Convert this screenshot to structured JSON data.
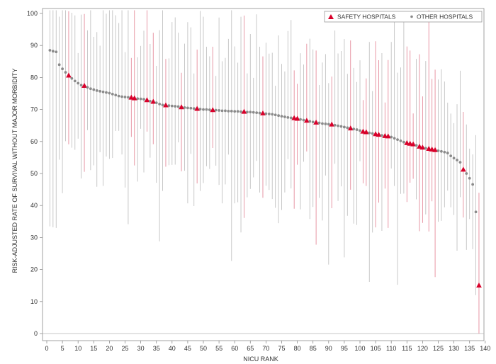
{
  "chart_data": {
    "type": "scatter",
    "title": "",
    "xlabel": "NICU RANK",
    "ylabel": "RISK-ADJUSTED RATE OF SURVIVAL WITHOUT MAJOR MORBIDITY",
    "xlim": [
      0,
      140
    ],
    "ylim": [
      0,
      100
    ],
    "x_ticks": [
      "0",
      "5",
      "10",
      "15",
      "20",
      "25",
      "30",
      "35",
      "40",
      "45",
      "50",
      "55",
      "60",
      "65",
      "70",
      "75",
      "80",
      "85",
      "90",
      "95",
      "100",
      "105",
      "110",
      "115",
      "120",
      "125",
      "130",
      "135",
      "140"
    ],
    "y_ticks": [
      "0",
      "10",
      "20",
      "30",
      "40",
      "50",
      "60",
      "70",
      "80",
      "90",
      "100"
    ],
    "grid": false,
    "legend_position": "top-right",
    "legend": [
      {
        "label": "SAFETY HOSPITALS",
        "marker": "triangle",
        "color": "#d8002a"
      },
      {
        "label": "OTHER HOSPITALS",
        "marker": "circle",
        "color": "#888888"
      }
    ],
    "safety_ranks": [
      7,
      12,
      27,
      28,
      32,
      34,
      38,
      43,
      48,
      53,
      63,
      69,
      79,
      80,
      83,
      86,
      91,
      97,
      101,
      102,
      105,
      106,
      108,
      109,
      115,
      116,
      117,
      119,
      120,
      122,
      123,
      124,
      133,
      138
    ],
    "points": [
      {
        "rank": 1,
        "y": 88.5
      },
      {
        "rank": 2,
        "y": 88.2
      },
      {
        "rank": 3,
        "y": 88.0
      },
      {
        "rank": 4,
        "y": 84.0
      },
      {
        "rank": 5,
        "y": 82.7
      },
      {
        "rank": 6,
        "y": 81.6
      },
      {
        "rank": 7,
        "y": 80.6
      },
      {
        "rank": 8,
        "y": 79.7
      },
      {
        "rank": 9,
        "y": 78.9
      },
      {
        "rank": 10,
        "y": 78.2
      },
      {
        "rank": 11,
        "y": 77.6
      },
      {
        "rank": 12,
        "y": 77.4
      },
      {
        "rank": 13,
        "y": 76.9
      },
      {
        "rank": 14,
        "y": 76.5
      },
      {
        "rank": 15,
        "y": 76.2
      },
      {
        "rank": 16,
        "y": 75.9
      },
      {
        "rank": 17,
        "y": 75.7
      },
      {
        "rank": 18,
        "y": 75.5
      },
      {
        "rank": 19,
        "y": 75.3
      },
      {
        "rank": 20,
        "y": 75.1
      },
      {
        "rank": 21,
        "y": 74.8
      },
      {
        "rank": 22,
        "y": 74.5
      },
      {
        "rank": 23,
        "y": 74.2
      },
      {
        "rank": 24,
        "y": 74.0
      },
      {
        "rank": 25,
        "y": 73.9
      },
      {
        "rank": 26,
        "y": 73.8
      },
      {
        "rank": 27,
        "y": 73.7
      },
      {
        "rank": 28,
        "y": 73.5
      },
      {
        "rank": 29,
        "y": 73.4
      },
      {
        "rank": 30,
        "y": 73.3
      },
      {
        "rank": 31,
        "y": 73.2
      },
      {
        "rank": 32,
        "y": 72.9
      },
      {
        "rank": 33,
        "y": 72.6
      },
      {
        "rank": 34,
        "y": 72.4
      },
      {
        "rank": 35,
        "y": 72.1
      },
      {
        "rank": 36,
        "y": 71.7
      },
      {
        "rank": 37,
        "y": 71.4
      },
      {
        "rank": 38,
        "y": 71.3
      },
      {
        "rank": 39,
        "y": 71.2
      },
      {
        "rank": 40,
        "y": 71.1
      },
      {
        "rank": 41,
        "y": 71.0
      },
      {
        "rank": 42,
        "y": 70.9
      },
      {
        "rank": 43,
        "y": 70.7
      },
      {
        "rank": 44,
        "y": 70.6
      },
      {
        "rank": 45,
        "y": 70.5
      },
      {
        "rank": 46,
        "y": 70.4
      },
      {
        "rank": 47,
        "y": 70.3
      },
      {
        "rank": 48,
        "y": 70.2
      },
      {
        "rank": 49,
        "y": 70.1
      },
      {
        "rank": 50,
        "y": 70.0
      },
      {
        "rank": 51,
        "y": 70.0
      },
      {
        "rank": 52,
        "y": 69.9
      },
      {
        "rank": 53,
        "y": 69.8
      },
      {
        "rank": 54,
        "y": 69.8
      },
      {
        "rank": 55,
        "y": 69.7
      },
      {
        "rank": 56,
        "y": 69.6
      },
      {
        "rank": 57,
        "y": 69.6
      },
      {
        "rank": 58,
        "y": 69.5
      },
      {
        "rank": 59,
        "y": 69.5
      },
      {
        "rank": 60,
        "y": 69.4
      },
      {
        "rank": 61,
        "y": 69.4
      },
      {
        "rank": 62,
        "y": 69.3
      },
      {
        "rank": 63,
        "y": 69.3
      },
      {
        "rank": 64,
        "y": 69.2
      },
      {
        "rank": 65,
        "y": 69.2
      },
      {
        "rank": 66,
        "y": 69.1
      },
      {
        "rank": 67,
        "y": 69.0
      },
      {
        "rank": 68,
        "y": 68.9
      },
      {
        "rank": 69,
        "y": 68.8
      },
      {
        "rank": 70,
        "y": 68.7
      },
      {
        "rank": 71,
        "y": 68.6
      },
      {
        "rank": 72,
        "y": 68.5
      },
      {
        "rank": 73,
        "y": 68.3
      },
      {
        "rank": 74,
        "y": 68.1
      },
      {
        "rank": 75,
        "y": 67.9
      },
      {
        "rank": 76,
        "y": 67.7
      },
      {
        "rank": 77,
        "y": 67.5
      },
      {
        "rank": 78,
        "y": 67.4
      },
      {
        "rank": 79,
        "y": 67.3
      },
      {
        "rank": 80,
        "y": 67.1
      },
      {
        "rank": 81,
        "y": 66.9
      },
      {
        "rank": 82,
        "y": 66.7
      },
      {
        "rank": 83,
        "y": 66.5
      },
      {
        "rank": 84,
        "y": 66.3
      },
      {
        "rank": 85,
        "y": 66.1
      },
      {
        "rank": 86,
        "y": 65.9
      },
      {
        "rank": 87,
        "y": 65.8
      },
      {
        "rank": 88,
        "y": 65.6
      },
      {
        "rank": 89,
        "y": 65.5
      },
      {
        "rank": 90,
        "y": 65.4
      },
      {
        "rank": 91,
        "y": 65.3
      },
      {
        "rank": 92,
        "y": 65.1
      },
      {
        "rank": 93,
        "y": 64.9
      },
      {
        "rank": 94,
        "y": 64.7
      },
      {
        "rank": 95,
        "y": 64.5
      },
      {
        "rank": 96,
        "y": 64.3
      },
      {
        "rank": 97,
        "y": 64.1
      },
      {
        "rank": 98,
        "y": 63.9
      },
      {
        "rank": 99,
        "y": 63.7
      },
      {
        "rank": 100,
        "y": 63.4
      },
      {
        "rank": 101,
        "y": 63.1
      },
      {
        "rank": 102,
        "y": 62.9
      },
      {
        "rank": 103,
        "y": 62.7
      },
      {
        "rank": 104,
        "y": 62.5
      },
      {
        "rank": 105,
        "y": 62.3
      },
      {
        "rank": 106,
        "y": 62.1
      },
      {
        "rank": 107,
        "y": 61.9
      },
      {
        "rank": 108,
        "y": 61.7
      },
      {
        "rank": 109,
        "y": 61.6
      },
      {
        "rank": 110,
        "y": 61.4
      },
      {
        "rank": 111,
        "y": 61.0
      },
      {
        "rank": 112,
        "y": 60.6
      },
      {
        "rank": 113,
        "y": 60.2
      },
      {
        "rank": 114,
        "y": 59.8
      },
      {
        "rank": 115,
        "y": 59.5
      },
      {
        "rank": 116,
        "y": 59.3
      },
      {
        "rank": 117,
        "y": 59.1
      },
      {
        "rank": 118,
        "y": 58.8
      },
      {
        "rank": 119,
        "y": 58.4
      },
      {
        "rank": 120,
        "y": 58.1
      },
      {
        "rank": 121,
        "y": 57.9
      },
      {
        "rank": 122,
        "y": 57.7
      },
      {
        "rank": 123,
        "y": 57.5
      },
      {
        "rank": 124,
        "y": 57.3
      },
      {
        "rank": 125,
        "y": 57.1
      },
      {
        "rank": 126,
        "y": 56.9
      },
      {
        "rank": 127,
        "y": 56.7
      },
      {
        "rank": 128,
        "y": 56.4
      },
      {
        "rank": 129,
        "y": 55.5
      },
      {
        "rank": 130,
        "y": 54.8
      },
      {
        "rank": 131,
        "y": 54.2
      },
      {
        "rank": 132,
        "y": 53.5
      },
      {
        "rank": 133,
        "y": 51.2
      },
      {
        "rank": 134,
        "y": 50.0
      },
      {
        "rank": 135,
        "y": 48.5
      },
      {
        "rank": 136,
        "y": 46.6
      },
      {
        "rank": 137,
        "y": 38.0
      },
      {
        "rank": 138,
        "y": 15.0
      }
    ]
  }
}
